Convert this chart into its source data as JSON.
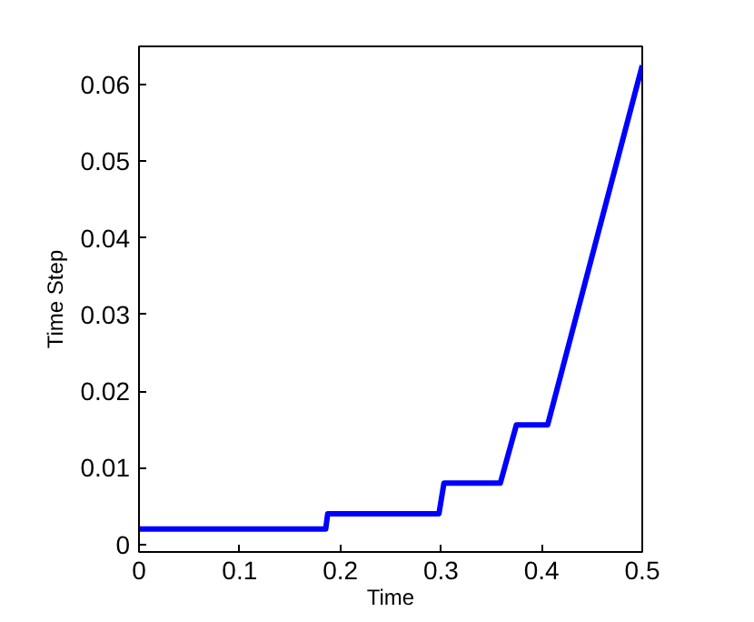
{
  "chart_data": {
    "type": "line",
    "xlabel": "Time",
    "ylabel": "Time Step",
    "x": [
      0,
      0.1855,
      0.1875,
      0.298,
      0.303,
      0.359,
      0.375,
      0.406,
      0.5
    ],
    "series": [
      {
        "color": "#0000ff",
        "values": [
          0.002,
          0.002,
          0.004,
          0.004,
          0.008,
          0.008,
          0.0156,
          0.0156,
          0.0625
        ]
      }
    ],
    "xlim": [
      0,
      0.5
    ],
    "ylim": [
      -0.001,
      0.065
    ],
    "xticks": [
      0,
      0.1,
      0.2,
      0.3,
      0.4,
      0.5
    ],
    "yticks": [
      0,
      0.01,
      0.02,
      0.03,
      0.04,
      0.05,
      0.06
    ],
    "grid": false,
    "marker": "none",
    "line_style": "solid"
  }
}
